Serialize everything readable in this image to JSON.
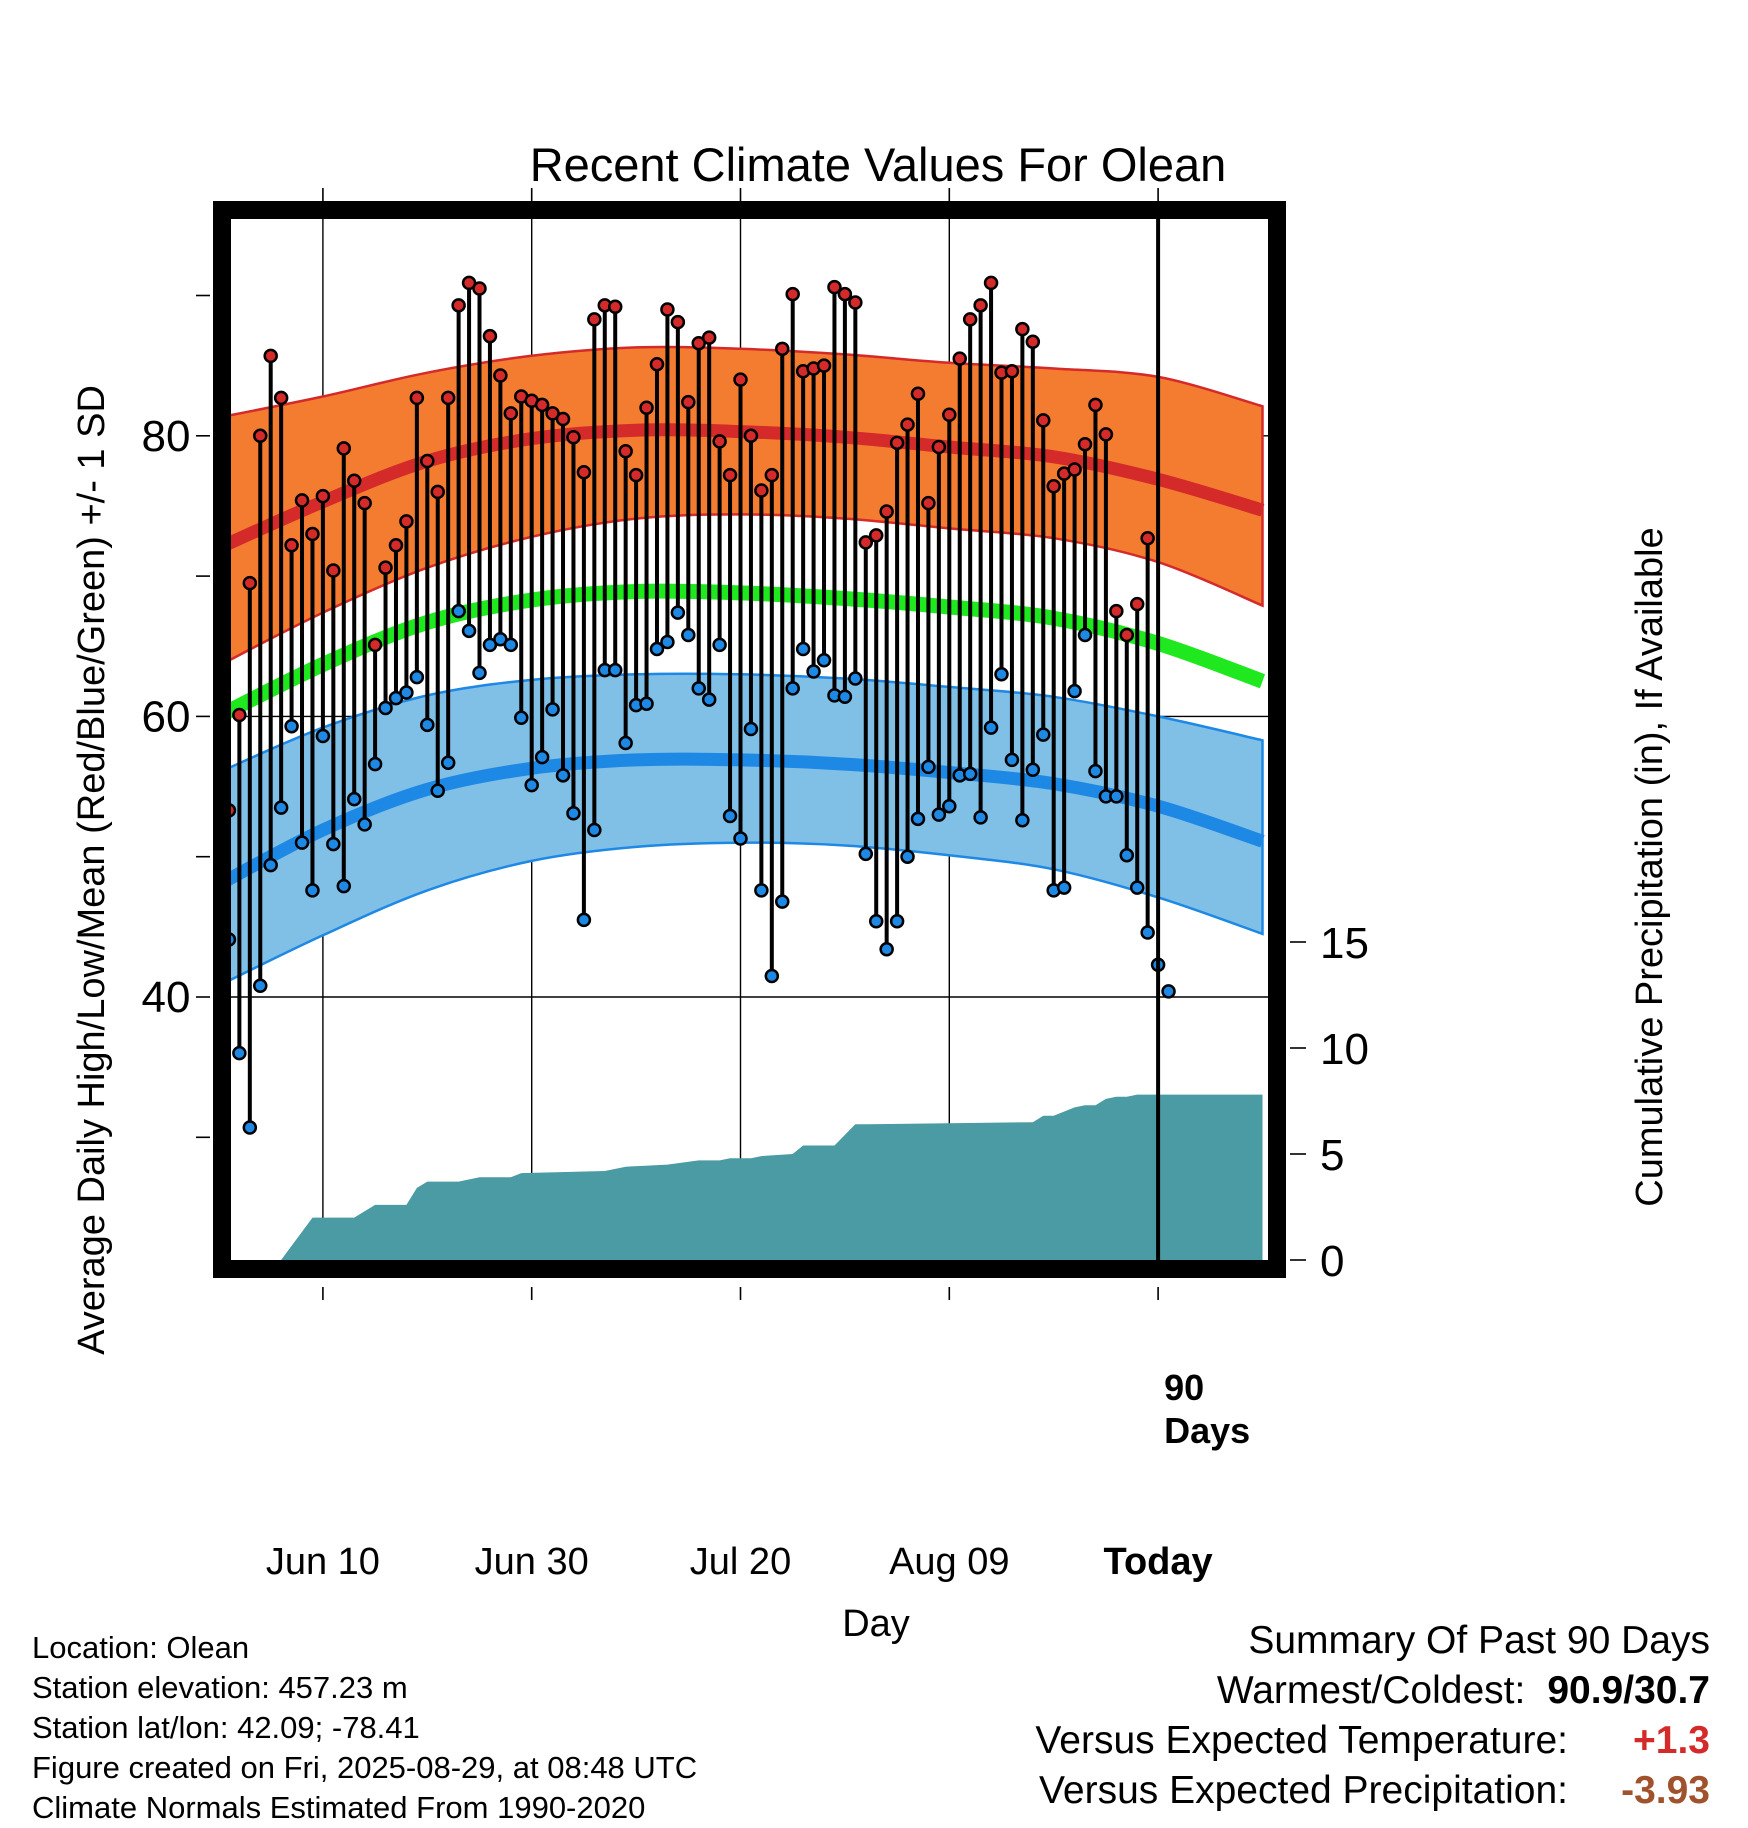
{
  "chart_data": {
    "type": "line",
    "title": "Recent Climate Values For Olean",
    "xlabel": "Day",
    "ylabel": "Average Daily High/Low/Mean (Red/Blue/Green) +/- 1 SD",
    "y2label": "Cumulative Precipitation (in), If Available",
    "x_ticks": [
      "Jun 10",
      "Jun 30",
      "Jul 20",
      "Aug 09",
      "Today"
    ],
    "x_tick_days": [
      10,
      30,
      50,
      70,
      90
    ],
    "xlim": [
      0,
      100
    ],
    "ylim": [
      21,
      97
    ],
    "y_ticks": [
      40,
      60,
      80
    ],
    "y2lim": [
      0,
      50
    ],
    "y2_ticks": [
      0,
      5,
      10,
      15
    ],
    "today_marker_label": [
      "90",
      "Days"
    ],
    "grid": true,
    "normals": {
      "day": [
        0,
        10,
        20,
        30,
        40,
        50,
        60,
        70,
        80,
        90,
        100
      ],
      "high_mean": [
        72,
        75.3,
        78.2,
        79.8,
        80.4,
        80.3,
        79.9,
        79.2,
        78.5,
        76.9,
        74.7
      ],
      "high_upper": [
        81.3,
        82.8,
        84.5,
        85.7,
        86.3,
        86.2,
        85.8,
        85.2,
        84.8,
        84.2,
        82.1
      ],
      "high_lower": [
        63.6,
        67.4,
        70.6,
        72.8,
        74.1,
        74.4,
        74.1,
        73.4,
        72.7,
        71.0,
        67.9
      ],
      "mean_mean": [
        60.0,
        63.7,
        66.7,
        68.3,
        68.9,
        68.8,
        68.4,
        67.8,
        67.0,
        65.2,
        62.5
      ],
      "low_mean": [
        48.0,
        51.9,
        54.8,
        56.3,
        56.9,
        56.9,
        56.6,
        56.0,
        55.2,
        53.6,
        51.1
      ],
      "low_upper": [
        56.0,
        59.2,
        61.5,
        62.6,
        63.0,
        63.0,
        62.7,
        62.1,
        61.4,
        60.0,
        58.3
      ],
      "low_lower": [
        40.8,
        44.4,
        47.6,
        49.7,
        50.7,
        51.0,
        50.8,
        50.1,
        49.1,
        47.1,
        44.5
      ]
    },
    "series": [
      {
        "name": "High",
        "color": "#d42a2a",
        "values": [
          53.3,
          60.1,
          69.5,
          80.0,
          85.7,
          82.7,
          72.2,
          75.4,
          73.0,
          75.7,
          70.4,
          79.1,
          76.8,
          75.2,
          65.1,
          70.6,
          72.2,
          73.9,
          82.7,
          78.2,
          76.0,
          82.7,
          89.3,
          90.9,
          90.5,
          87.1,
          84.3,
          81.6,
          82.8,
          82.5,
          82.2,
          81.6,
          81.2,
          79.9,
          77.4,
          88.3,
          89.3,
          89.2,
          78.9,
          77.2,
          82.0,
          85.1,
          89.0,
          88.1,
          82.4,
          86.6,
          87.0,
          79.6,
          77.2,
          84.0,
          80.0,
          76.1,
          77.2,
          86.2,
          90.1,
          84.6,
          84.8,
          85.0,
          90.6,
          90.1,
          89.5,
          72.4,
          72.9,
          74.6,
          79.5,
          80.8,
          83.0,
          75.2,
          79.2,
          81.5,
          85.5,
          88.3,
          89.3,
          90.9,
          84.5,
          84.6,
          87.6,
          86.7,
          81.1,
          76.4,
          77.3,
          77.6,
          79.4,
          82.2,
          80.1,
          67.5,
          65.8,
          68.0,
          72.7
        ]
      },
      {
        "name": "Low",
        "color": "#1e88e5",
        "values": [
          44.1,
          36.0,
          30.7,
          40.8,
          49.4,
          53.5,
          59.3,
          51.0,
          47.6,
          58.6,
          50.9,
          47.9,
          54.1,
          52.3,
          56.6,
          60.6,
          61.3,
          61.7,
          62.8,
          59.4,
          54.7,
          56.7,
          67.5,
          66.1,
          63.1,
          65.1,
          65.5,
          65.1,
          59.9,
          55.1,
          57.1,
          60.5,
          55.8,
          53.1,
          45.5,
          51.9,
          63.3,
          63.3,
          58.1,
          60.8,
          60.9,
          64.8,
          65.3,
          67.4,
          65.8,
          62.0,
          61.2,
          65.1,
          52.9,
          51.3,
          59.1,
          47.6,
          41.5,
          46.8,
          62.0,
          64.8,
          63.2,
          64.0,
          61.5,
          61.4,
          62.7,
          50.2,
          45.4,
          43.4,
          45.4,
          50.0,
          52.7,
          56.4,
          53.0,
          53.6,
          55.8,
          55.9,
          52.8,
          59.2,
          63.0,
          56.9,
          52.6,
          56.2,
          58.7,
          47.6,
          47.8,
          61.8,
          65.8,
          56.1,
          54.3,
          54.3,
          50.1,
          47.8,
          44.6,
          42.3,
          40.4
        ]
      }
    ],
    "precipitation": {
      "name": "Cumulative Precipitation",
      "color": "#4a9ba3",
      "day": [
        6,
        9,
        12,
        13,
        15,
        18,
        19,
        20,
        22,
        23,
        25,
        28,
        29,
        37,
        39,
        43,
        46,
        48,
        49,
        51,
        52,
        55,
        56,
        59,
        61,
        62,
        78,
        79,
        80,
        82,
        83,
        84,
        85,
        86,
        87,
        88,
        100
      ],
      "total": [
        0,
        2.0,
        2.0,
        2.0,
        2.6,
        2.6,
        3.4,
        3.7,
        3.7,
        3.7,
        3.9,
        3.9,
        4.1,
        4.2,
        4.4,
        4.5,
        4.7,
        4.7,
        4.8,
        4.8,
        4.9,
        5.0,
        5.4,
        5.4,
        6.4,
        6.4,
        6.5,
        6.8,
        6.8,
        7.2,
        7.3,
        7.3,
        7.6,
        7.7,
        7.7,
        7.8,
        7.8
      ]
    }
  },
  "station": {
    "location": "Location: Olean",
    "elevation": "Station elevation: 457.23 m",
    "latlon": "Station lat/lon: 42.09; -78.41",
    "created": "Figure created on Fri, 2025-08-29, at 08:48 UTC",
    "normals_note": "Climate Normals Estimated From 1990-2020"
  },
  "summary": {
    "title": "Summary Of Past 90 Days",
    "warmest_label": "Warmest/Coldest:",
    "warmest_value": "90.9/30.7",
    "temp_label": "Versus Expected Temperature:",
    "temp_value": "+1.3",
    "temp_color": "#d42a2a",
    "precip_label": "Versus Expected Precipitation:",
    "precip_value": "-3.93",
    "precip_color": "#a0522d"
  }
}
